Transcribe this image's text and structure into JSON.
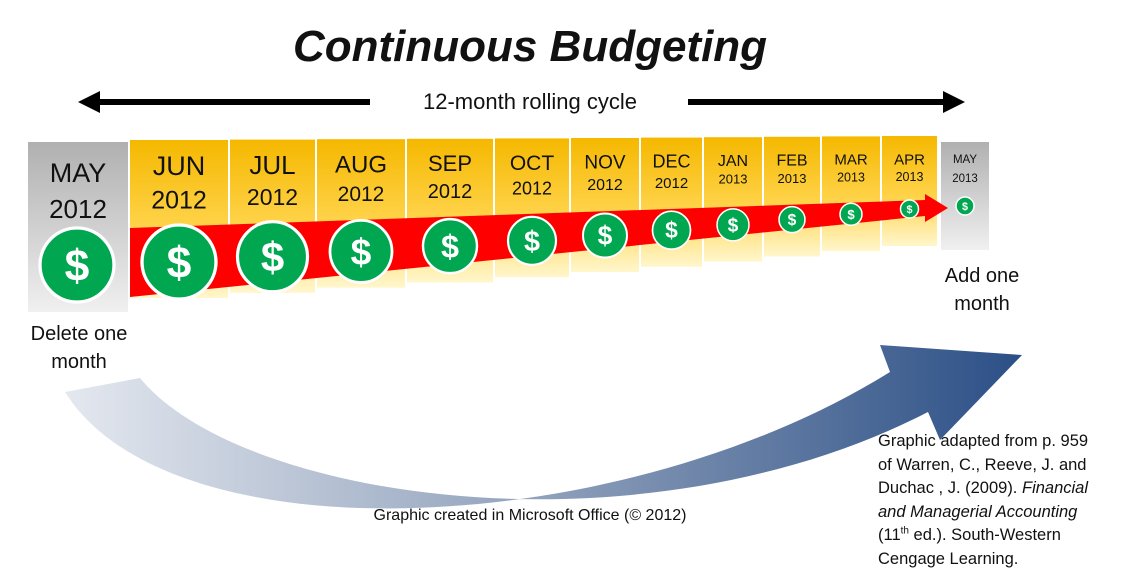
{
  "title": "Continuous Budgeting",
  "cycle_label": "12-month rolling cycle",
  "removed_month": {
    "month": "MAY",
    "year": "2012"
  },
  "months": [
    {
      "month": "JUN",
      "year": "2012"
    },
    {
      "month": "JUL",
      "year": "2012"
    },
    {
      "month": "AUG",
      "year": "2012"
    },
    {
      "month": "SEP",
      "year": "2012"
    },
    {
      "month": "OCT",
      "year": "2012"
    },
    {
      "month": "NOV",
      "year": "2012"
    },
    {
      "month": "DEC",
      "year": "2012"
    },
    {
      "month": "JAN",
      "year": "2013"
    },
    {
      "month": "FEB",
      "year": "2013"
    },
    {
      "month": "MAR",
      "year": "2013"
    },
    {
      "month": "APR",
      "year": "2013"
    }
  ],
  "added_month": {
    "month": "MAY",
    "year": "2013"
  },
  "coin_symbol": "$",
  "delete_label_line1": "Delete  one",
  "delete_label_line2": "month",
  "add_label_line1": "Add one",
  "add_label_line2": "month",
  "credit": "Graphic created in Microsoft Office (© 2012)",
  "source": {
    "line1": "Graphic adapted from  p. 959",
    "line2": "of Warren, C., Reeve, J. and",
    "line3a": "Duchac , J. (2009). ",
    "line3b": "Financial",
    "line4": "and Managerial Accounting",
    "line5a": "(11",
    "line5sup": "th",
    "line5b": " ed.). South-Western",
    "line6": "Cengage Learning."
  },
  "colors": {
    "month_gold": "#f5b800",
    "month_light": "#fff3c0",
    "gray": "#bfbfbf",
    "arrow_red": "#ff0000",
    "coin_green": "#00a650",
    "curve_blue": "#2a4a7a"
  }
}
